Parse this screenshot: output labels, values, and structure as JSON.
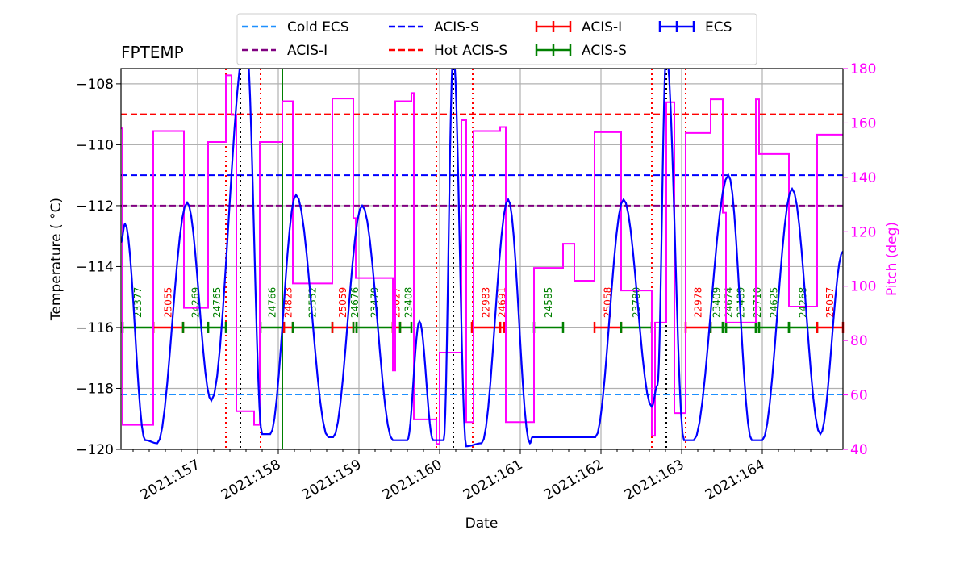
{
  "chart_data": {
    "type": "line",
    "title": "FPTEMP",
    "xlabel": "Date",
    "ylabel": "Temperature ($^\\circ$C)",
    "ylabel_display": "Temperature ( °C)",
    "y2label": "Pitch (deg)",
    "xlim": [
      156.05,
      165.0
    ],
    "ylim": [
      -120,
      -107.5
    ],
    "y2lim": [
      40,
      180
    ],
    "grid": true,
    "legend_position": "top-center",
    "x_ticks": [
      157,
      158,
      159,
      160,
      161,
      162,
      163,
      164
    ],
    "x_tick_labels": [
      "2021:157",
      "2021:158",
      "2021:159",
      "2021:160",
      "2021:161",
      "2021:162",
      "2021:163",
      "2021:164"
    ],
    "y_ticks": [
      -120,
      -118,
      -116,
      -114,
      -112,
      -110,
      -108
    ],
    "y_tick_labels": [
      "−120",
      "−118",
      "−116",
      "−114",
      "−112",
      "−110",
      "−108"
    ],
    "y2_ticks": [
      40,
      60,
      80,
      100,
      120,
      140,
      160,
      180
    ],
    "y2_tick_labels": [
      "40",
      "60",
      "80",
      "100",
      "120",
      "140",
      "160",
      "180"
    ],
    "colors": {
      "ecs": "#0000ff",
      "pitch": "#ff00ff",
      "acis_i": "#ff0000",
      "acis_s": "#008000",
      "cold_ecs": "#1e90ff",
      "acis_i_limit": "#800080",
      "acis_s_limit": "#0000ff",
      "hot_acis_s": "#ff0000"
    },
    "limit_lines": [
      {
        "name": "Cold ECS",
        "value": -118.2,
        "color": "#1e90ff"
      },
      {
        "name": "ACIS-I",
        "value": -112.0,
        "color": "#800080"
      },
      {
        "name": "ACIS-S",
        "value": -111.0,
        "color": "#0000ff"
      },
      {
        "name": "Hot ACIS-S",
        "value": -109.0,
        "color": "#ff0000"
      }
    ],
    "legend": [
      {
        "label": "Cold ECS",
        "style": "dashed",
        "color": "#1e90ff"
      },
      {
        "label": "ACIS-I",
        "style": "dashed",
        "color": "#800080"
      },
      {
        "label": "ACIS-S",
        "style": "dashed",
        "color": "#0000ff"
      },
      {
        "label": "Hot ACIS-S",
        "style": "dashed",
        "color": "#ff0000"
      },
      {
        "label": "ACIS-I",
        "style": "errorbar",
        "color": "#ff0000"
      },
      {
        "label": "ACIS-S",
        "style": "errorbar",
        "color": "#008000"
      },
      {
        "label": "ECS",
        "style": "errorbar",
        "color": "#0000ff"
      }
    ],
    "series": [
      {
        "name": "FPTEMP",
        "axis": "left",
        "color": "#0000ff",
        "points": [
          [
            156.05,
            -113.2
          ],
          [
            156.1,
            -112.6
          ],
          [
            156.35,
            -119.7
          ],
          [
            156.5,
            -119.8
          ],
          [
            156.87,
            -111.9
          ],
          [
            157.17,
            -118.4
          ],
          [
            157.6,
            -106.5
          ],
          [
            157.8,
            -119.5
          ],
          [
            157.9,
            -119.5
          ],
          [
            158.22,
            -111.65
          ],
          [
            158.62,
            -119.6
          ],
          [
            158.68,
            -119.6
          ],
          [
            159.04,
            -112.0
          ],
          [
            159.42,
            -119.7
          ],
          [
            159.6,
            -119.7
          ],
          [
            159.75,
            -115.8
          ],
          [
            159.92,
            -119.7
          ],
          [
            160.05,
            -119.7
          ],
          [
            160.17,
            -107.0
          ],
          [
            160.33,
            -119.9
          ],
          [
            160.52,
            -119.8
          ],
          [
            160.85,
            -111.8
          ],
          [
            161.12,
            -119.8
          ],
          [
            161.15,
            -119.6
          ],
          [
            161.93,
            -119.6
          ],
          [
            162.28,
            -111.8
          ],
          [
            162.63,
            -118.6
          ],
          [
            162.7,
            -117.9
          ],
          [
            162.81,
            -107.0
          ],
          [
            163.03,
            -119.7
          ],
          [
            163.15,
            -119.7
          ],
          [
            163.58,
            -111.0
          ],
          [
            163.87,
            -119.7
          ],
          [
            164.0,
            -119.7
          ],
          [
            164.37,
            -111.45
          ],
          [
            164.72,
            -119.5
          ],
          [
            165.0,
            -113.5
          ]
        ]
      },
      {
        "name": "Pitch",
        "axis": "right",
        "color": "#ff00ff",
        "steps": [
          [
            156.05,
            158
          ],
          [
            156.07,
            49
          ],
          [
            156.45,
            157
          ],
          [
            156.83,
            92
          ],
          [
            157.13,
            153
          ],
          [
            157.35,
            177.5
          ],
          [
            157.42,
            163
          ],
          [
            157.48,
            54
          ],
          [
            157.7,
            49
          ],
          [
            157.77,
            153
          ],
          [
            158.05,
            168
          ],
          [
            158.18,
            101
          ],
          [
            158.67,
            169
          ],
          [
            158.93,
            125
          ],
          [
            158.96,
            103
          ],
          [
            159.42,
            69
          ],
          [
            159.45,
            168
          ],
          [
            159.65,
            171
          ],
          [
            159.68,
            51
          ],
          [
            159.96,
            42
          ],
          [
            160.0,
            75.6
          ],
          [
            160.27,
            161
          ],
          [
            160.33,
            50
          ],
          [
            160.42,
            157
          ],
          [
            160.75,
            158.5
          ],
          [
            160.82,
            50
          ],
          [
            161.17,
            106.7
          ],
          [
            161.53,
            115.6
          ],
          [
            161.67,
            102
          ],
          [
            161.92,
            156.6
          ],
          [
            162.25,
            98.4
          ],
          [
            162.63,
            45
          ],
          [
            162.67,
            86.6
          ],
          [
            162.81,
            167.6
          ],
          [
            162.91,
            53.3
          ],
          [
            163.05,
            156.3
          ],
          [
            163.36,
            168.7
          ],
          [
            163.51,
            127
          ],
          [
            163.55,
            86.6
          ],
          [
            163.92,
            168.7
          ],
          [
            163.96,
            148.6
          ],
          [
            164.33,
            92.5
          ],
          [
            164.68,
            155.7
          ],
          [
            165.0,
            155.7
          ]
        ]
      }
    ],
    "obsid_level": -116,
    "obsids": [
      {
        "label": "23377",
        "start": 156.07,
        "end": 156.45,
        "instrument": "ACIS-S"
      },
      {
        "label": "25055",
        "start": 156.45,
        "end": 156.82,
        "instrument": "ACIS-I"
      },
      {
        "label": "24269",
        "start": 156.82,
        "end": 157.13,
        "instrument": "ACIS-S"
      },
      {
        "label": "24765",
        "start": 157.13,
        "end": 157.35,
        "instrument": "ACIS-S"
      },
      {
        "label": "24766",
        "start": 157.78,
        "end": 158.07,
        "instrument": "ACIS-S"
      },
      {
        "label": "24823",
        "start": 158.07,
        "end": 158.18,
        "instrument": "ACIS-I"
      },
      {
        "label": "23552",
        "start": 158.18,
        "end": 158.67,
        "instrument": "ACIS-S"
      },
      {
        "label": "25059",
        "start": 158.67,
        "end": 158.93,
        "instrument": "ACIS-I"
      },
      {
        "label": "24676",
        "start": 158.93,
        "end": 158.97,
        "instrument": "ACIS-S"
      },
      {
        "label": "23479",
        "start": 158.97,
        "end": 159.42,
        "instrument": "ACIS-S"
      },
      {
        "label": "25027",
        "start": 159.42,
        "end": 159.51,
        "instrument": "ACIS-I"
      },
      {
        "label": "23408",
        "start": 159.51,
        "end": 159.65,
        "instrument": "ACIS-S"
      },
      {
        "label": "22983",
        "start": 160.4,
        "end": 160.75,
        "instrument": "ACIS-I"
      },
      {
        "label": "24691",
        "start": 160.75,
        "end": 160.8,
        "instrument": "ACIS-I"
      },
      {
        "label": "24585",
        "start": 161.17,
        "end": 161.53,
        "instrument": "ACIS-S"
      },
      {
        "label": "25058",
        "start": 161.92,
        "end": 162.25,
        "instrument": "ACIS-I"
      },
      {
        "label": "23780",
        "start": 162.25,
        "end": 162.63,
        "instrument": "ACIS-S"
      },
      {
        "label": "22978",
        "start": 163.05,
        "end": 163.36,
        "instrument": "ACIS-I"
      },
      {
        "label": "23409",
        "start": 163.36,
        "end": 163.51,
        "instrument": "ACIS-S"
      },
      {
        "label": "24674",
        "start": 163.51,
        "end": 163.55,
        "instrument": "ACIS-S"
      },
      {
        "label": "23489",
        "start": 163.55,
        "end": 163.92,
        "instrument": "ACIS-S"
      },
      {
        "label": "23710",
        "start": 163.92,
        "end": 163.96,
        "instrument": "ACIS-S"
      },
      {
        "label": "24625",
        "start": 163.96,
        "end": 164.33,
        "instrument": "ACIS-S"
      },
      {
        "label": "24268",
        "start": 164.33,
        "end": 164.68,
        "instrument": "ACIS-S"
      },
      {
        "label": "25057",
        "start": 164.68,
        "end": 165.0,
        "instrument": "ACIS-I"
      }
    ],
    "vertical_lines": [
      {
        "x": 157.35,
        "color": "#ff0000",
        "style": "dotted"
      },
      {
        "x": 157.78,
        "color": "#ff0000",
        "style": "dotted"
      },
      {
        "x": 159.96,
        "color": "#ff0000",
        "style": "dotted"
      },
      {
        "x": 160.41,
        "color": "#ff0000",
        "style": "dotted"
      },
      {
        "x": 162.63,
        "color": "#ff0000",
        "style": "dotted"
      },
      {
        "x": 163.05,
        "color": "#ff0000",
        "style": "dotted"
      },
      {
        "x": 157.53,
        "color": "#000000",
        "style": "dotted"
      },
      {
        "x": 160.17,
        "color": "#000000",
        "style": "dotted"
      },
      {
        "x": 162.81,
        "color": "#000000",
        "style": "dotted"
      },
      {
        "x": 158.05,
        "color": "#008000",
        "style": "solid"
      }
    ]
  }
}
